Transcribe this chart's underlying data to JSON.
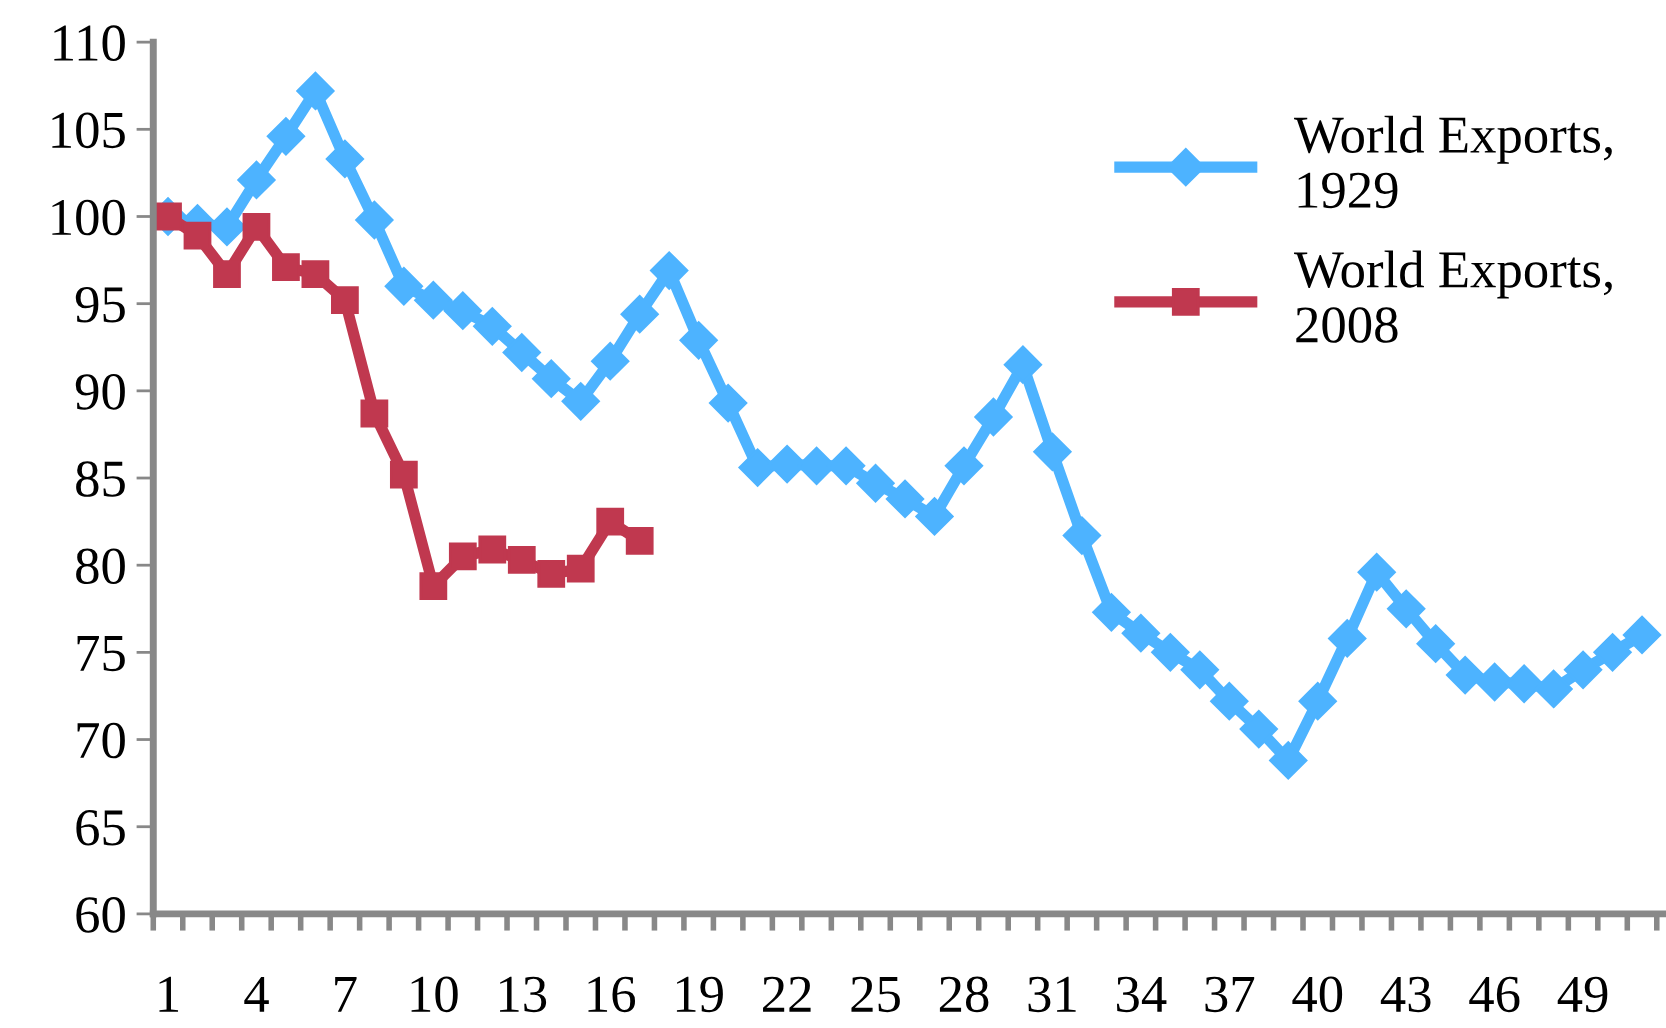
{
  "chart_data": {
    "type": "line",
    "categories": [
      "1",
      null,
      null,
      "4",
      null,
      null,
      "7",
      null,
      null,
      "10",
      null,
      null,
      "13",
      null,
      null,
      "16",
      null,
      null,
      "19",
      null,
      null,
      "22",
      null,
      null,
      "25",
      null,
      null,
      "28",
      null,
      null,
      "31",
      null,
      null,
      "34",
      null,
      null,
      "37",
      null,
      null,
      "40",
      null,
      null,
      "43",
      null,
      null,
      "46",
      null,
      null,
      "49",
      null,
      null
    ],
    "series": [
      {
        "name": "World Exports,\n1929",
        "color": "#4db3ff",
        "marker": "diamond",
        "values": [
          100,
          99.6,
          99.4,
          102.1,
          104.6,
          107.2,
          103.3,
          99.8,
          96.0,
          95.2,
          94.6,
          93.7,
          92.2,
          90.7,
          89.4,
          91.7,
          94.4,
          96.9,
          92.9,
          89.3,
          85.6,
          85.8,
          85.7,
          85.7,
          84.7,
          83.8,
          82.8,
          85.7,
          88.5,
          91.5,
          86.5,
          81.7,
          77.3,
          76.1,
          75.0,
          74.0,
          72.2,
          70.6,
          68.8,
          72.2,
          75.8,
          79.6,
          77.5,
          75.5,
          73.7,
          73.3,
          73.2,
          72.9,
          74.0,
          75.0,
          76.0
        ]
      },
      {
        "name": "World Exports,\n2008",
        "color": "#c0384f",
        "marker": "square",
        "values": [
          100,
          98.9,
          96.7,
          99.4,
          97.1,
          96.7,
          95.2,
          88.7,
          85.2,
          78.8,
          80.5,
          80.9,
          80.3,
          79.5,
          79.8,
          82.5,
          81.4,
          null,
          null,
          null,
          null,
          null,
          null,
          null,
          null,
          null,
          null,
          null,
          null,
          null,
          null,
          null,
          null,
          null,
          null,
          null,
          null,
          null,
          null,
          null,
          null,
          null,
          null,
          null,
          null,
          null,
          null,
          null,
          null,
          null,
          null
        ]
      }
    ],
    "ylim": [
      60,
      110
    ],
    "yticks": [
      60,
      65,
      70,
      75,
      80,
      85,
      90,
      95,
      100,
      105,
      110
    ],
    "grid": false,
    "legend": "top right",
    "line_style": "solid"
  }
}
